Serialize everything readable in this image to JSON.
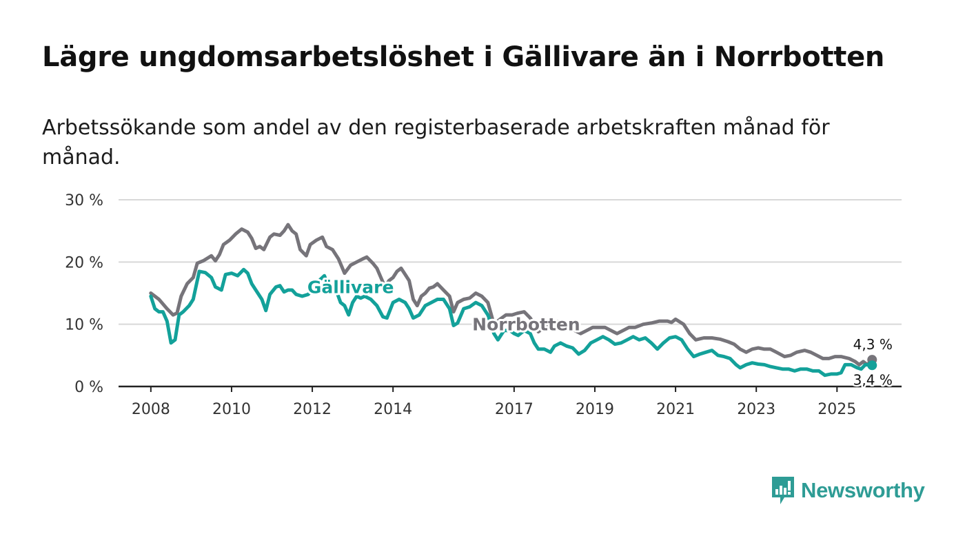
{
  "header": {
    "title": "Lägre ungdomsarbetslöshet i Gällivare än i Norrbotten",
    "subtitle": "Arbetssökande som andel av den registerbaserade arbetskraften månad för månad."
  },
  "brand": {
    "name": "Newsworthy",
    "color": "#2e9c95"
  },
  "chart_data": {
    "type": "line",
    "title": "Lägre ungdomsarbetslöshet i Gällivare än i Norrbotten",
    "subtitle": "Arbetssökande som andel av den registerbaserade arbetskraften månad för månad.",
    "xlabel": "",
    "ylabel": "",
    "x_range": [
      2007.2,
      2026.6
    ],
    "ylim": [
      0,
      30
    ],
    "y_ticks": [
      {
        "value": 0,
        "label": "0 %"
      },
      {
        "value": 10,
        "label": "10 %"
      },
      {
        "value": 20,
        "label": "20 %"
      },
      {
        "value": 30,
        "label": "30 %"
      }
    ],
    "x_ticks": [
      {
        "value": 2008,
        "label": "2008"
      },
      {
        "value": 2010,
        "label": "2010"
      },
      {
        "value": 2012,
        "label": "2012"
      },
      {
        "value": 2014,
        "label": "2014"
      },
      {
        "value": 2017,
        "label": "2017"
      },
      {
        "value": 2019,
        "label": "2019"
      },
      {
        "value": 2021,
        "label": "2021"
      },
      {
        "value": 2023,
        "label": "2023"
      },
      {
        "value": 2025,
        "label": "2025"
      }
    ],
    "grid": true,
    "series": [
      {
        "name": "Norrbotten",
        "color": "#76747a",
        "label_at": [
          2017.3,
          9.0
        ],
        "end_label": "4,3 %",
        "points": [
          [
            2008.0,
            15.0
          ],
          [
            2008.2,
            14.0
          ],
          [
            2008.4,
            12.5
          ],
          [
            2008.55,
            11.5
          ],
          [
            2008.65,
            11.8
          ],
          [
            2008.75,
            14.5
          ],
          [
            2008.9,
            16.5
          ],
          [
            2009.05,
            17.5
          ],
          [
            2009.15,
            19.8
          ],
          [
            2009.3,
            20.2
          ],
          [
            2009.5,
            21.0
          ],
          [
            2009.6,
            20.2
          ],
          [
            2009.7,
            21.2
          ],
          [
            2009.8,
            22.8
          ],
          [
            2009.95,
            23.5
          ],
          [
            2010.1,
            24.5
          ],
          [
            2010.25,
            25.3
          ],
          [
            2010.4,
            24.8
          ],
          [
            2010.5,
            23.8
          ],
          [
            2010.6,
            22.2
          ],
          [
            2010.7,
            22.5
          ],
          [
            2010.8,
            22.0
          ],
          [
            2010.95,
            24.0
          ],
          [
            2011.05,
            24.5
          ],
          [
            2011.2,
            24.3
          ],
          [
            2011.3,
            25.0
          ],
          [
            2011.4,
            26.0
          ],
          [
            2011.5,
            25.0
          ],
          [
            2011.6,
            24.5
          ],
          [
            2011.7,
            22.0
          ],
          [
            2011.85,
            21.0
          ],
          [
            2011.95,
            22.8
          ],
          [
            2012.1,
            23.5
          ],
          [
            2012.25,
            24.0
          ],
          [
            2012.35,
            22.5
          ],
          [
            2012.5,
            22.0
          ],
          [
            2012.65,
            20.5
          ],
          [
            2012.8,
            18.2
          ],
          [
            2012.95,
            19.5
          ],
          [
            2013.1,
            20.0
          ],
          [
            2013.25,
            20.5
          ],
          [
            2013.35,
            20.8
          ],
          [
            2013.5,
            19.8
          ],
          [
            2013.6,
            19.0
          ],
          [
            2013.7,
            17.5
          ],
          [
            2013.8,
            16.0
          ],
          [
            2013.9,
            17.0
          ],
          [
            2014.0,
            17.5
          ],
          [
            2014.1,
            18.5
          ],
          [
            2014.2,
            19.0
          ],
          [
            2014.3,
            18.0
          ],
          [
            2014.4,
            17.0
          ],
          [
            2014.5,
            14.0
          ],
          [
            2014.6,
            13.0
          ],
          [
            2014.7,
            14.5
          ],
          [
            2014.8,
            15.0
          ],
          [
            2014.9,
            15.8
          ],
          [
            2015.0,
            16.0
          ],
          [
            2015.1,
            16.5
          ],
          [
            2015.25,
            15.5
          ],
          [
            2015.4,
            14.5
          ],
          [
            2015.5,
            12.0
          ],
          [
            2015.6,
            13.5
          ],
          [
            2015.75,
            14.0
          ],
          [
            2015.9,
            14.2
          ],
          [
            2016.05,
            15.0
          ],
          [
            2016.2,
            14.5
          ],
          [
            2016.35,
            13.5
          ],
          [
            2016.5,
            10.0
          ],
          [
            2016.65,
            10.8
          ],
          [
            2016.8,
            11.5
          ],
          [
            2016.95,
            11.5
          ],
          [
            2017.1,
            11.8
          ],
          [
            2017.25,
            12.0
          ],
          [
            2017.4,
            11.0
          ],
          [
            2017.5,
            10.0
          ],
          [
            2017.6,
            8.8
          ],
          [
            2017.75,
            9.5
          ],
          [
            2017.9,
            10.5
          ],
          [
            2018.05,
            10.5
          ],
          [
            2018.2,
            10.2
          ],
          [
            2018.35,
            9.8
          ],
          [
            2018.5,
            9.0
          ],
          [
            2018.65,
            8.5
          ],
          [
            2018.8,
            9.0
          ],
          [
            2018.95,
            9.5
          ],
          [
            2019.1,
            9.5
          ],
          [
            2019.25,
            9.5
          ],
          [
            2019.4,
            9.0
          ],
          [
            2019.55,
            8.5
          ],
          [
            2019.7,
            9.0
          ],
          [
            2019.85,
            9.5
          ],
          [
            2020.0,
            9.5
          ],
          [
            2020.2,
            10.0
          ],
          [
            2020.4,
            10.2
          ],
          [
            2020.6,
            10.5
          ],
          [
            2020.8,
            10.5
          ],
          [
            2020.9,
            10.3
          ],
          [
            2021.0,
            10.8
          ],
          [
            2021.2,
            10.0
          ],
          [
            2021.35,
            8.5
          ],
          [
            2021.5,
            7.5
          ],
          [
            2021.7,
            7.8
          ],
          [
            2021.9,
            7.8
          ],
          [
            2022.1,
            7.6
          ],
          [
            2022.3,
            7.2
          ],
          [
            2022.45,
            6.8
          ],
          [
            2022.6,
            6.0
          ],
          [
            2022.75,
            5.5
          ],
          [
            2022.9,
            6.0
          ],
          [
            2023.05,
            6.2
          ],
          [
            2023.2,
            6.0
          ],
          [
            2023.35,
            6.0
          ],
          [
            2023.5,
            5.5
          ],
          [
            2023.7,
            4.8
          ],
          [
            2023.85,
            5.0
          ],
          [
            2024.0,
            5.5
          ],
          [
            2024.2,
            5.8
          ],
          [
            2024.35,
            5.5
          ],
          [
            2024.5,
            5.0
          ],
          [
            2024.65,
            4.5
          ],
          [
            2024.8,
            4.5
          ],
          [
            2024.95,
            4.8
          ],
          [
            2025.1,
            4.8
          ],
          [
            2025.3,
            4.5
          ],
          [
            2025.45,
            4.0
          ],
          [
            2025.55,
            3.5
          ],
          [
            2025.65,
            4.0
          ],
          [
            2025.75,
            3.5
          ],
          [
            2025.87,
            4.3
          ]
        ]
      },
      {
        "name": "Gällivare",
        "color": "#13a19a",
        "label_at": [
          2012.95,
          15.0
        ],
        "end_label": "3,4 %",
        "points": [
          [
            2008.0,
            14.5
          ],
          [
            2008.1,
            12.5
          ],
          [
            2008.2,
            12.0
          ],
          [
            2008.3,
            12.0
          ],
          [
            2008.4,
            10.5
          ],
          [
            2008.5,
            7.0
          ],
          [
            2008.6,
            7.5
          ],
          [
            2008.7,
            11.5
          ],
          [
            2008.8,
            12.0
          ],
          [
            2008.95,
            13.0
          ],
          [
            2009.05,
            14.0
          ],
          [
            2009.2,
            18.5
          ],
          [
            2009.35,
            18.3
          ],
          [
            2009.5,
            17.5
          ],
          [
            2009.6,
            16.0
          ],
          [
            2009.75,
            15.5
          ],
          [
            2009.85,
            18.0
          ],
          [
            2010.0,
            18.2
          ],
          [
            2010.15,
            17.8
          ],
          [
            2010.3,
            18.8
          ],
          [
            2010.4,
            18.2
          ],
          [
            2010.5,
            16.5
          ],
          [
            2010.6,
            15.5
          ],
          [
            2010.75,
            14.0
          ],
          [
            2010.85,
            12.2
          ],
          [
            2010.95,
            14.8
          ],
          [
            2011.1,
            16.0
          ],
          [
            2011.2,
            16.2
          ],
          [
            2011.3,
            15.2
          ],
          [
            2011.4,
            15.5
          ],
          [
            2011.5,
            15.5
          ],
          [
            2011.6,
            14.8
          ],
          [
            2011.75,
            14.5
          ],
          [
            2011.9,
            14.8
          ],
          [
            2012.0,
            15.5
          ],
          [
            2012.1,
            16.5
          ],
          [
            2012.2,
            17.2
          ],
          [
            2012.3,
            17.8
          ],
          [
            2012.4,
            16.0
          ],
          [
            2012.55,
            16.2
          ],
          [
            2012.7,
            13.5
          ],
          [
            2012.8,
            13.0
          ],
          [
            2012.9,
            11.5
          ],
          [
            2013.0,
            13.5
          ],
          [
            2013.1,
            14.5
          ],
          [
            2013.2,
            14.2
          ],
          [
            2013.3,
            14.5
          ],
          [
            2013.45,
            14.0
          ],
          [
            2013.6,
            13.0
          ],
          [
            2013.75,
            11.2
          ],
          [
            2013.85,
            11.0
          ],
          [
            2014.0,
            13.5
          ],
          [
            2014.15,
            14.0
          ],
          [
            2014.3,
            13.5
          ],
          [
            2014.4,
            12.5
          ],
          [
            2014.5,
            11.0
          ],
          [
            2014.65,
            11.5
          ],
          [
            2014.8,
            13.0
          ],
          [
            2014.95,
            13.5
          ],
          [
            2015.1,
            14.0
          ],
          [
            2015.25,
            14.0
          ],
          [
            2015.4,
            12.5
          ],
          [
            2015.5,
            9.8
          ],
          [
            2015.6,
            10.2
          ],
          [
            2015.75,
            12.5
          ],
          [
            2015.9,
            12.8
          ],
          [
            2016.05,
            13.5
          ],
          [
            2016.2,
            13.0
          ],
          [
            2016.35,
            11.5
          ],
          [
            2016.5,
            8.5
          ],
          [
            2016.6,
            7.5
          ],
          [
            2016.75,
            9.0
          ],
          [
            2016.9,
            9.0
          ],
          [
            2017.0,
            8.5
          ],
          [
            2017.1,
            8.2
          ],
          [
            2017.25,
            9.0
          ],
          [
            2017.4,
            8.5
          ],
          [
            2017.5,
            7.0
          ],
          [
            2017.6,
            6.0
          ],
          [
            2017.75,
            6.0
          ],
          [
            2017.9,
            5.5
          ],
          [
            2018.0,
            6.5
          ],
          [
            2018.15,
            7.0
          ],
          [
            2018.3,
            6.5
          ],
          [
            2018.45,
            6.2
          ],
          [
            2018.6,
            5.2
          ],
          [
            2018.75,
            5.8
          ],
          [
            2018.9,
            7.0
          ],
          [
            2019.05,
            7.5
          ],
          [
            2019.2,
            8.0
          ],
          [
            2019.35,
            7.5
          ],
          [
            2019.5,
            6.8
          ],
          [
            2019.65,
            7.0
          ],
          [
            2019.8,
            7.5
          ],
          [
            2019.95,
            8.0
          ],
          [
            2020.1,
            7.5
          ],
          [
            2020.25,
            7.8
          ],
          [
            2020.4,
            7.0
          ],
          [
            2020.55,
            6.0
          ],
          [
            2020.7,
            7.0
          ],
          [
            2020.85,
            7.8
          ],
          [
            2021.0,
            8.0
          ],
          [
            2021.15,
            7.5
          ],
          [
            2021.3,
            6.0
          ],
          [
            2021.45,
            4.8
          ],
          [
            2021.6,
            5.2
          ],
          [
            2021.75,
            5.5
          ],
          [
            2021.9,
            5.8
          ],
          [
            2022.05,
            5.0
          ],
          [
            2022.2,
            4.8
          ],
          [
            2022.35,
            4.5
          ],
          [
            2022.5,
            3.5
          ],
          [
            2022.6,
            3.0
          ],
          [
            2022.75,
            3.5
          ],
          [
            2022.9,
            3.8
          ],
          [
            2023.05,
            3.6
          ],
          [
            2023.2,
            3.5
          ],
          [
            2023.35,
            3.2
          ],
          [
            2023.5,
            3.0
          ],
          [
            2023.65,
            2.8
          ],
          [
            2023.8,
            2.8
          ],
          [
            2023.95,
            2.5
          ],
          [
            2024.1,
            2.8
          ],
          [
            2024.25,
            2.8
          ],
          [
            2024.4,
            2.5
          ],
          [
            2024.55,
            2.5
          ],
          [
            2024.7,
            1.8
          ],
          [
            2024.85,
            2.0
          ],
          [
            2025.0,
            2.0
          ],
          [
            2025.1,
            2.2
          ],
          [
            2025.2,
            3.5
          ],
          [
            2025.35,
            3.5
          ],
          [
            2025.5,
            3.0
          ],
          [
            2025.6,
            2.8
          ],
          [
            2025.7,
            3.5
          ],
          [
            2025.87,
            3.4
          ]
        ]
      }
    ]
  }
}
